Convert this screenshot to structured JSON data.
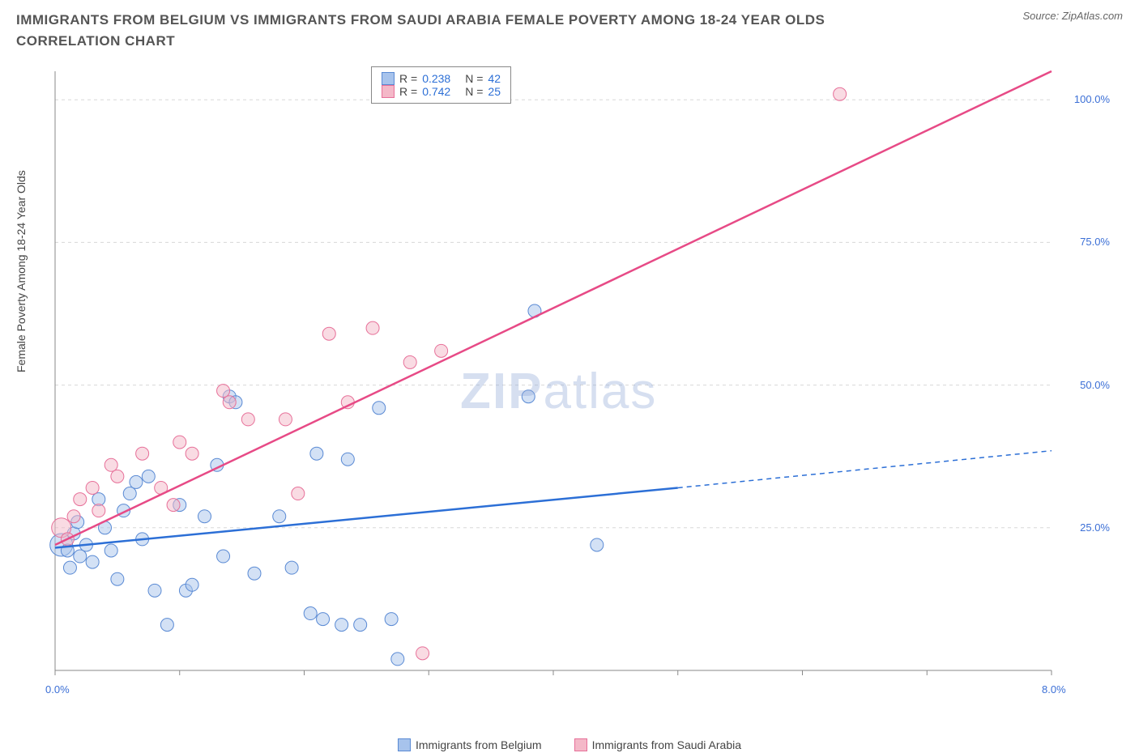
{
  "title": "IMMIGRANTS FROM BELGIUM VS IMMIGRANTS FROM SAUDI ARABIA FEMALE POVERTY AMONG 18-24 YEAR OLDS CORRELATION CHART",
  "source": "Source: ZipAtlas.com",
  "ylabel": "Female Poverty Among 18-24 Year Olds",
  "watermark_a": "ZIP",
  "watermark_b": "atlas",
  "chart": {
    "type": "scatter",
    "xlim": [
      0,
      8
    ],
    "ylim": [
      0,
      105
    ],
    "xtick_positions": [
      0,
      1,
      2,
      3,
      4,
      5,
      6,
      7,
      8
    ],
    "xtick_labels": [
      "0.0%",
      "",
      "",
      "",
      "",
      "",
      "",
      "",
      "8.0%"
    ],
    "ytick_positions": [
      25,
      50,
      75,
      100
    ],
    "ytick_labels": [
      "25.0%",
      "50.0%",
      "75.0%",
      "100.0%"
    ],
    "grid_color": "#d8d8d8",
    "grid_dash": "4,4",
    "axis_color": "#888888",
    "background_color": "#ffffff",
    "marker_radius": 8,
    "marker_opacity": 0.5,
    "line_width": 2.5
  },
  "series": [
    {
      "name": "Immigrants from Belgium",
      "color_fill": "#a7c3ec",
      "color_stroke": "#5a8ad4",
      "line_color": "#2c6fd6",
      "r_value": "0.238",
      "n_value": "42",
      "trend": {
        "x1": 0.0,
        "y1": 21.5,
        "x2": 5.0,
        "y2": 32.0,
        "x2_dash": 8.0,
        "y2_dash": 38.5
      },
      "points": [
        {
          "x": 0.05,
          "y": 22,
          "r": 14
        },
        {
          "x": 0.1,
          "y": 21
        },
        {
          "x": 0.12,
          "y": 18
        },
        {
          "x": 0.15,
          "y": 24
        },
        {
          "x": 0.2,
          "y": 20
        },
        {
          "x": 0.25,
          "y": 22
        },
        {
          "x": 0.3,
          "y": 19
        },
        {
          "x": 0.35,
          "y": 30
        },
        {
          "x": 0.4,
          "y": 25
        },
        {
          "x": 0.45,
          "y": 21
        },
        {
          "x": 0.5,
          "y": 16
        },
        {
          "x": 0.55,
          "y": 28
        },
        {
          "x": 0.6,
          "y": 31
        },
        {
          "x": 0.7,
          "y": 23
        },
        {
          "x": 0.75,
          "y": 34
        },
        {
          "x": 0.8,
          "y": 14
        },
        {
          "x": 0.9,
          "y": 8
        },
        {
          "x": 1.0,
          "y": 29
        },
        {
          "x": 1.05,
          "y": 14
        },
        {
          "x": 1.1,
          "y": 15
        },
        {
          "x": 1.2,
          "y": 27
        },
        {
          "x": 1.3,
          "y": 36
        },
        {
          "x": 1.35,
          "y": 20
        },
        {
          "x": 1.4,
          "y": 48
        },
        {
          "x": 1.45,
          "y": 47
        },
        {
          "x": 1.6,
          "y": 17
        },
        {
          "x": 1.8,
          "y": 27
        },
        {
          "x": 1.9,
          "y": 18
        },
        {
          "x": 2.05,
          "y": 10
        },
        {
          "x": 2.1,
          "y": 38
        },
        {
          "x": 2.15,
          "y": 9
        },
        {
          "x": 2.3,
          "y": 8
        },
        {
          "x": 2.35,
          "y": 37
        },
        {
          "x": 2.45,
          "y": 8
        },
        {
          "x": 2.6,
          "y": 46
        },
        {
          "x": 2.7,
          "y": 9
        },
        {
          "x": 2.75,
          "y": 2
        },
        {
          "x": 3.8,
          "y": 48
        },
        {
          "x": 3.85,
          "y": 63
        },
        {
          "x": 4.35,
          "y": 22
        },
        {
          "x": 0.65,
          "y": 33
        },
        {
          "x": 0.18,
          "y": 26
        }
      ]
    },
    {
      "name": "Immigrants from Saudi Arabia",
      "color_fill": "#f4b8c8",
      "color_stroke": "#e77099",
      "line_color": "#e74a86",
      "r_value": "0.742",
      "n_value": "25",
      "trend": {
        "x1": 0.0,
        "y1": 22.0,
        "x2": 8.0,
        "y2": 105.0
      },
      "points": [
        {
          "x": 0.05,
          "y": 25,
          "r": 12
        },
        {
          "x": 0.1,
          "y": 23
        },
        {
          "x": 0.15,
          "y": 27
        },
        {
          "x": 0.2,
          "y": 30
        },
        {
          "x": 0.3,
          "y": 32
        },
        {
          "x": 0.35,
          "y": 28
        },
        {
          "x": 0.45,
          "y": 36
        },
        {
          "x": 0.5,
          "y": 34
        },
        {
          "x": 0.7,
          "y": 38
        },
        {
          "x": 0.85,
          "y": 32
        },
        {
          "x": 0.95,
          "y": 29
        },
        {
          "x": 1.0,
          "y": 40
        },
        {
          "x": 1.1,
          "y": 38
        },
        {
          "x": 1.35,
          "y": 49
        },
        {
          "x": 1.4,
          "y": 47
        },
        {
          "x": 1.55,
          "y": 44
        },
        {
          "x": 1.85,
          "y": 44
        },
        {
          "x": 1.95,
          "y": 31
        },
        {
          "x": 2.2,
          "y": 59
        },
        {
          "x": 2.35,
          "y": 47
        },
        {
          "x": 2.55,
          "y": 60
        },
        {
          "x": 2.85,
          "y": 54
        },
        {
          "x": 2.95,
          "y": 3
        },
        {
          "x": 3.1,
          "y": 56
        },
        {
          "x": 6.3,
          "y": 101
        }
      ]
    }
  ],
  "legend_top": {
    "rows": [
      {
        "color_fill": "#a7c3ec",
        "color_stroke": "#5a8ad4",
        "r": "R = ",
        "rv": "0.238",
        "n": "N = ",
        "nv": "42"
      },
      {
        "color_fill": "#f4b8c8",
        "color_stroke": "#e77099",
        "r": "R = ",
        "rv": "0.742",
        "n": "N = ",
        "nv": "25"
      }
    ]
  },
  "legend_bottom": [
    {
      "color_fill": "#a7c3ec",
      "color_stroke": "#5a8ad4",
      "label": "Immigrants from Belgium"
    },
    {
      "color_fill": "#f4b8c8",
      "color_stroke": "#e77099",
      "label": "Immigrants from Saudi Arabia"
    }
  ]
}
